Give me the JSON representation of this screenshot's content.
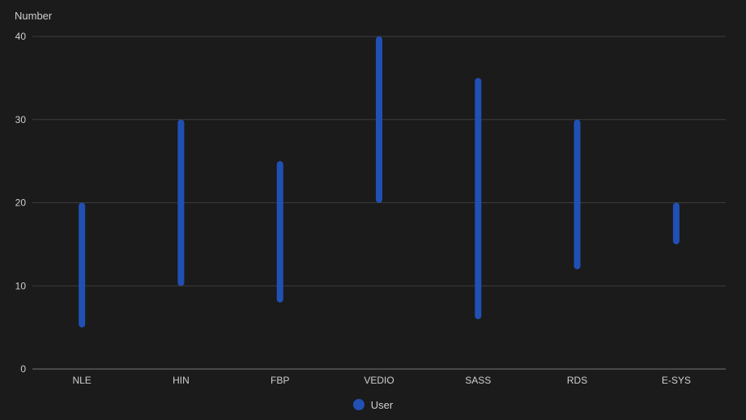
{
  "chart_data": {
    "type": "range-bar",
    "ylabel": "Number",
    "categories": [
      "NLE",
      "HIN",
      "FBP",
      "VEDIO",
      "SASS",
      "RDS",
      "E-SYS"
    ],
    "series": [
      {
        "name": "User",
        "color": "#2150b5",
        "ranges": [
          [
            5,
            20
          ],
          [
            10,
            30
          ],
          [
            8,
            25
          ],
          [
            20,
            40
          ],
          [
            6,
            35
          ],
          [
            12,
            30
          ],
          [
            15,
            20
          ]
        ]
      }
    ],
    "ylim": [
      0,
      40
    ],
    "yticks": [
      "0",
      "10",
      "20",
      "30",
      "40"
    ],
    "grid": true,
    "legend_position": "bottom-center"
  },
  "colors": {
    "background": "#1b1b1b",
    "grid": "#3c3c3c",
    "axis": "#777777",
    "text": "#cfcfcf"
  }
}
